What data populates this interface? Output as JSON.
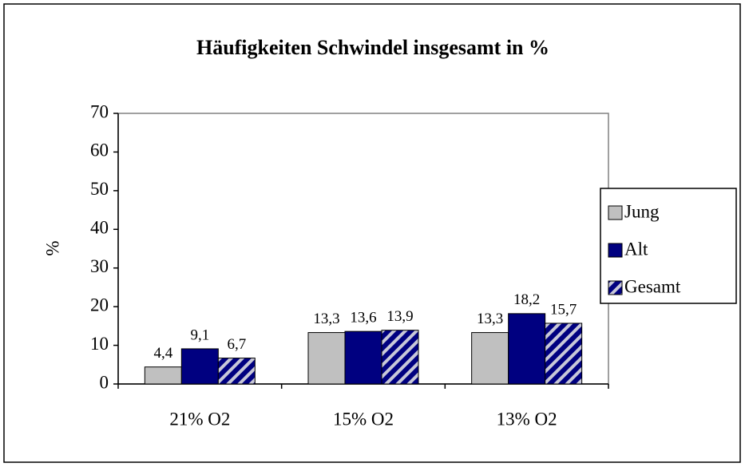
{
  "chart_data": {
    "type": "bar",
    "title": "Häufigkeiten Schwindel insgesamt in %",
    "ylabel": "%",
    "categories": [
      "21% O2",
      "15% O2",
      "13% O2"
    ],
    "series": [
      {
        "name": "Jung",
        "color": "#c0c0c0",
        "values": [
          4.4,
          13.3,
          13.3
        ],
        "value_labels": [
          "4,4",
          "13,3",
          "13,3"
        ]
      },
      {
        "name": "Alt",
        "color": "#000080",
        "values": [
          9.1,
          13.6,
          18.2
        ],
        "value_labels": [
          "9,1",
          "13,6",
          "18,2"
        ]
      },
      {
        "name": "Gesamt",
        "color": "#000080",
        "pattern": "hatch",
        "values": [
          6.7,
          13.9,
          15.7
        ],
        "value_labels": [
          "6,7",
          "13,9",
          "15,7"
        ]
      }
    ],
    "ylim": [
      0,
      70
    ],
    "yticks": [
      0,
      10,
      20,
      30,
      40,
      50,
      60,
      70
    ],
    "grid": false,
    "legend": "right"
  }
}
